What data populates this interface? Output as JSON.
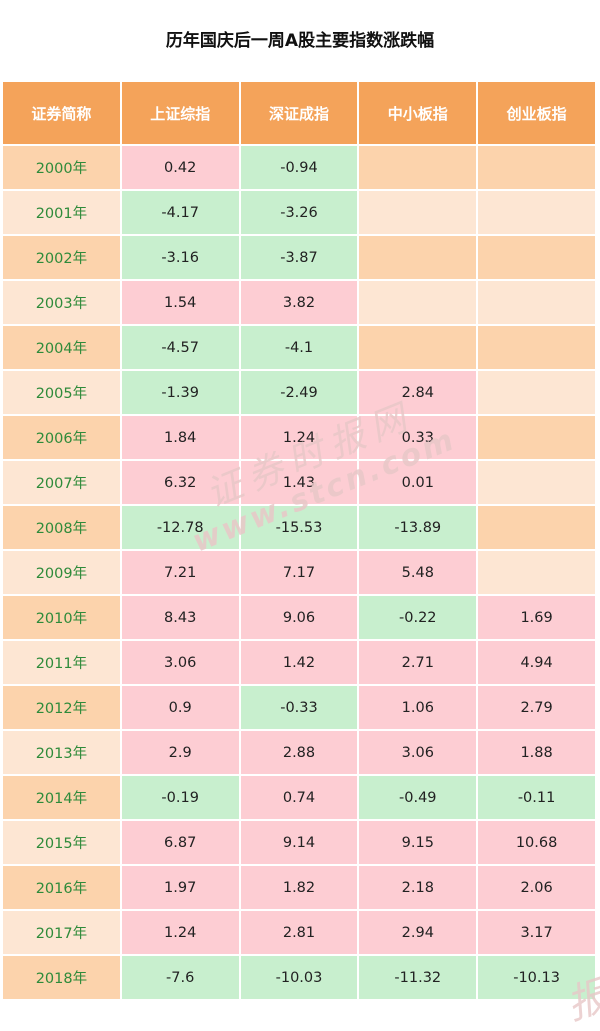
{
  "title": "历年国庆后一周A股主要指数涨跌幅",
  "colors": {
    "header": "#f4a35a",
    "year_even": "#fcd3ac",
    "year_odd": "#fde6d3",
    "up": "#fdcdd3",
    "down": "#c8efce",
    "empty_even": "#fcd3ac",
    "empty_odd": "#fde6d3",
    "year_text": "#2e8b3a"
  },
  "watermark": {
    "cn": "证券时报网",
    "en": "www.stcn.com",
    "corner": "报"
  },
  "chart_data": {
    "type": "table",
    "title": "历年国庆后一周A股主要指数涨跌幅",
    "columns": [
      "证券简称",
      "上证综指",
      "深证成指",
      "中小板指",
      "创业板指"
    ],
    "rows": [
      {
        "year": "2000年",
        "values": [
          "0.42",
          "-0.94",
          "",
          ""
        ]
      },
      {
        "year": "2001年",
        "values": [
          "-4.17",
          "-3.26",
          "",
          ""
        ]
      },
      {
        "year": "2002年",
        "values": [
          "-3.16",
          "-3.87",
          "",
          ""
        ]
      },
      {
        "year": "2003年",
        "values": [
          "1.54",
          "3.82",
          "",
          ""
        ]
      },
      {
        "year": "2004年",
        "values": [
          "-4.57",
          "-4.1",
          "",
          ""
        ]
      },
      {
        "year": "2005年",
        "values": [
          "-1.39",
          "-2.49",
          "2.84",
          ""
        ]
      },
      {
        "year": "2006年",
        "values": [
          "1.84",
          "1.24",
          "0.33",
          ""
        ]
      },
      {
        "year": "2007年",
        "values": [
          "6.32",
          "1.43",
          "0.01",
          ""
        ]
      },
      {
        "year": "2008年",
        "values": [
          "-12.78",
          "-15.53",
          "-13.89",
          ""
        ]
      },
      {
        "year": "2009年",
        "values": [
          "7.21",
          "7.17",
          "5.48",
          ""
        ]
      },
      {
        "year": "2010年",
        "values": [
          "8.43",
          "9.06",
          "-0.22",
          "1.69"
        ]
      },
      {
        "year": "2011年",
        "values": [
          "3.06",
          "1.42",
          "2.71",
          "4.94"
        ]
      },
      {
        "year": "2012年",
        "values": [
          "0.9",
          "-0.33",
          "1.06",
          "2.79"
        ]
      },
      {
        "year": "2013年",
        "values": [
          "2.9",
          "2.88",
          "3.06",
          "1.88"
        ]
      },
      {
        "year": "2014年",
        "values": [
          "-0.19",
          "0.74",
          "-0.49",
          "-0.11"
        ]
      },
      {
        "year": "2015年",
        "values": [
          "6.87",
          "9.14",
          "9.15",
          "10.68"
        ]
      },
      {
        "year": "2016年",
        "values": [
          "1.97",
          "1.82",
          "2.18",
          "2.06"
        ]
      },
      {
        "year": "2017年",
        "values": [
          "1.24",
          "2.81",
          "2.94",
          "3.17"
        ]
      },
      {
        "year": "2018年",
        "values": [
          "-7.6",
          "-10.03",
          "-11.32",
          "-10.13"
        ]
      }
    ]
  }
}
